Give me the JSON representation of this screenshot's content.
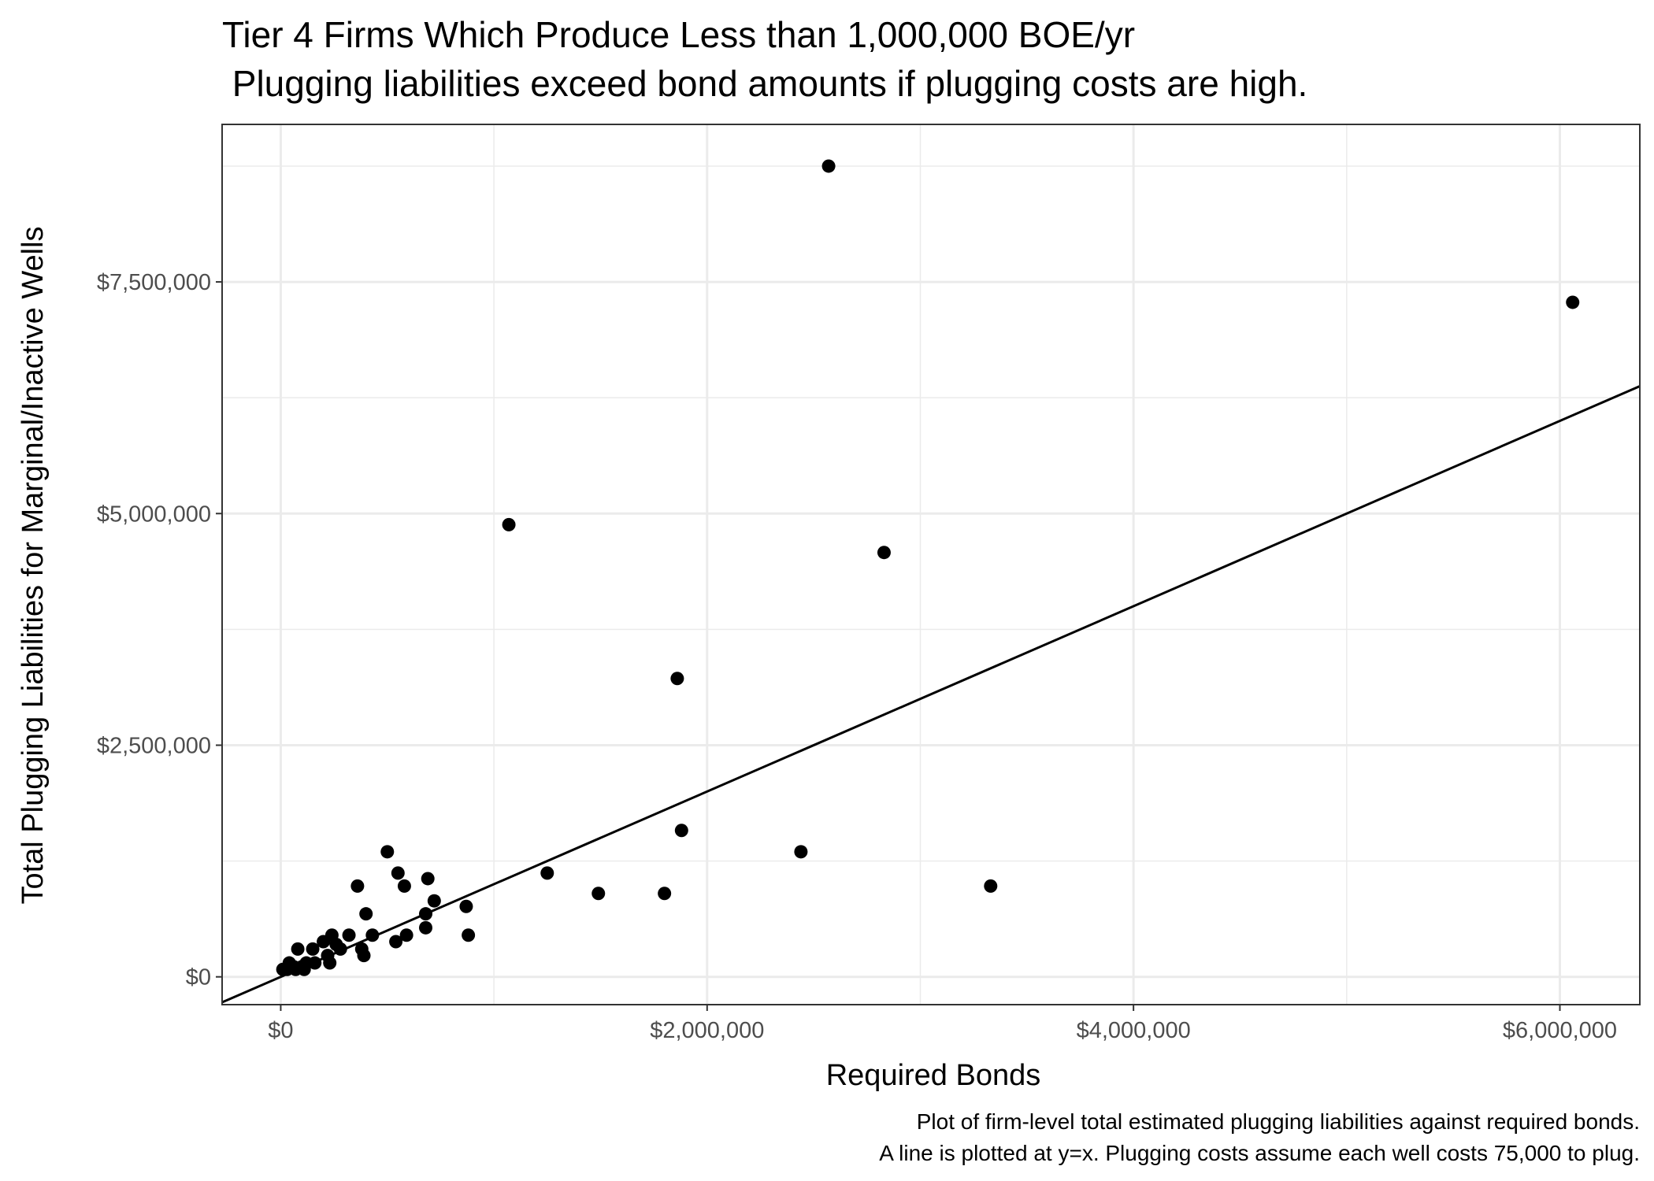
{
  "chart_data": {
    "type": "scatter",
    "title": "Tier 4 Firms Which Produce Less than 1,000,000 BOE/yr",
    "subtitle": " Plugging liabilities exceed bond amounts if plugging costs are high.",
    "xlabel": "Required Bonds",
    "ylabel": "Total Plugging Liabilities for Marginal/Inactive Wells",
    "caption_lines": [
      "Plot of firm-level total estimated plugging liabilities against required bonds.",
      "A line is plotted at y=x. Plugging costs assume each well costs 75,000 to plug."
    ],
    "xlim": [
      -275000,
      6375000
    ],
    "ylim": [
      -300000,
      9200000
    ],
    "x_ticks": [
      {
        "value": 0,
        "label": "$0"
      },
      {
        "value": 2000000,
        "label": "$2,000,000"
      },
      {
        "value": 4000000,
        "label": "$4,000,000"
      },
      {
        "value": 6000000,
        "label": "$6,000,000"
      }
    ],
    "x_minor_ticks": [
      1000000,
      3000000,
      5000000
    ],
    "y_ticks": [
      {
        "value": 0,
        "label": "$0"
      },
      {
        "value": 2500000,
        "label": "$2,500,000"
      },
      {
        "value": 5000000,
        "label": "$5,000,000"
      },
      {
        "value": 7500000,
        "label": "$7,500,000"
      }
    ],
    "y_minor_ticks": [
      1250000,
      3750000,
      6250000,
      8750000
    ],
    "grid": true,
    "reference_line": {
      "slope": 1,
      "intercept": 0
    },
    "colors": {
      "points": "#000000",
      "line": "#000000",
      "grid": "#ebebeb",
      "panel_border": "#333333",
      "tick_label": "#4d4d4d"
    },
    "points": [
      {
        "x": 2570000,
        "y": 8750000
      },
      {
        "x": 6060000,
        "y": 7280000
      },
      {
        "x": 1070000,
        "y": 4880000
      },
      {
        "x": 2830000,
        "y": 4580000
      },
      {
        "x": 1860000,
        "y": 3220000
      },
      {
        "x": 1880000,
        "y": 1580000
      },
      {
        "x": 2440000,
        "y": 1350000
      },
      {
        "x": 3330000,
        "y": 980000
      },
      {
        "x": 1250000,
        "y": 1120000
      },
      {
        "x": 1490000,
        "y": 900000
      },
      {
        "x": 1800000,
        "y": 900000
      },
      {
        "x": 500000,
        "y": 1350000
      },
      {
        "x": 550000,
        "y": 1120000
      },
      {
        "x": 690000,
        "y": 1060000
      },
      {
        "x": 580000,
        "y": 980000
      },
      {
        "x": 360000,
        "y": 980000
      },
      {
        "x": 720000,
        "y": 820000
      },
      {
        "x": 870000,
        "y": 760000
      },
      {
        "x": 400000,
        "y": 680000
      },
      {
        "x": 680000,
        "y": 680000
      },
      {
        "x": 680000,
        "y": 530000
      },
      {
        "x": 880000,
        "y": 450000
      },
      {
        "x": 590000,
        "y": 450000
      },
      {
        "x": 430000,
        "y": 450000
      },
      {
        "x": 320000,
        "y": 450000
      },
      {
        "x": 240000,
        "y": 450000
      },
      {
        "x": 540000,
        "y": 380000
      },
      {
        "x": 200000,
        "y": 380000
      },
      {
        "x": 260000,
        "y": 350000
      },
      {
        "x": 380000,
        "y": 300000
      },
      {
        "x": 280000,
        "y": 300000
      },
      {
        "x": 150000,
        "y": 300000
      },
      {
        "x": 80000,
        "y": 300000
      },
      {
        "x": 390000,
        "y": 230000
      },
      {
        "x": 220000,
        "y": 230000
      },
      {
        "x": 230000,
        "y": 150000
      },
      {
        "x": 160000,
        "y": 150000
      },
      {
        "x": 120000,
        "y": 150000
      },
      {
        "x": 40000,
        "y": 150000
      },
      {
        "x": 100000,
        "y": 110000
      },
      {
        "x": 60000,
        "y": 110000
      },
      {
        "x": 110000,
        "y": 80000
      },
      {
        "x": 70000,
        "y": 80000
      },
      {
        "x": 30000,
        "y": 80000
      },
      {
        "x": 10000,
        "y": 80000
      }
    ]
  }
}
